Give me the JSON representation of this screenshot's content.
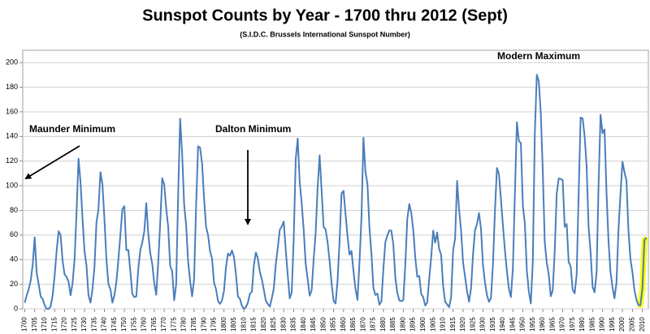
{
  "chart_data": {
    "type": "line",
    "title": "Sunspot Counts by Year - 1700 thru 2012 (Sept)",
    "subtitle": "(S.I.D.C. Brussels International Sunspot Number)",
    "annotations": [
      "Maunder Minimum",
      "Dalton Minimum",
      "Modern Maximum"
    ],
    "xlim": [
      1699,
      2013
    ],
    "ylim": [
      0,
      210
    ],
    "yticks": [
      0,
      20,
      40,
      60,
      80,
      100,
      120,
      140,
      160,
      180,
      200
    ],
    "xticks": [
      1700,
      1705,
      1710,
      1715,
      1720,
      1725,
      1730,
      1735,
      1740,
      1745,
      1750,
      1755,
      1760,
      1765,
      1770,
      1775,
      1780,
      1785,
      1790,
      1795,
      1800,
      1805,
      1810,
      1815,
      1820,
      1825,
      1830,
      1835,
      1840,
      1845,
      1850,
      1855,
      1860,
      1865,
      1870,
      1875,
      1880,
      1885,
      1890,
      1895,
      1900,
      1905,
      1910,
      1915,
      1920,
      1925,
      1930,
      1935,
      1940,
      1945,
      1950,
      1955,
      1960,
      1965,
      1970,
      1975,
      1980,
      1985,
      1990,
      1995,
      2000,
      2005,
      2010
    ],
    "grid": true,
    "color": "#4a7ebb",
    "highlight": {
      "x": [
        2008,
        2012
      ],
      "color": "#ffff00"
    },
    "x": [
      1700,
      1701,
      1702,
      1703,
      1704,
      1705,
      1706,
      1707,
      1708,
      1709,
      1710,
      1711,
      1712,
      1713,
      1714,
      1715,
      1716,
      1717,
      1718,
      1719,
      1720,
      1721,
      1722,
      1723,
      1724,
      1725,
      1726,
      1727,
      1728,
      1729,
      1730,
      1731,
      1732,
      1733,
      1734,
      1735,
      1736,
      1737,
      1738,
      1739,
      1740,
      1741,
      1742,
      1743,
      1744,
      1745,
      1746,
      1747,
      1748,
      1749,
      1750,
      1751,
      1752,
      1753,
      1754,
      1755,
      1756,
      1757,
      1758,
      1759,
      1760,
      1761,
      1762,
      1763,
      1764,
      1765,
      1766,
      1767,
      1768,
      1769,
      1770,
      1771,
      1772,
      1773,
      1774,
      1775,
      1776,
      1777,
      1778,
      1779,
      1780,
      1781,
      1782,
      1783,
      1784,
      1785,
      1786,
      1787,
      1788,
      1789,
      1790,
      1791,
      1792,
      1793,
      1794,
      1795,
      1796,
      1797,
      1798,
      1799,
      1800,
      1801,
      1802,
      1803,
      1804,
      1805,
      1806,
      1807,
      1808,
      1809,
      1810,
      1811,
      1812,
      1813,
      1814,
      1815,
      1816,
      1817,
      1818,
      1819,
      1820,
      1821,
      1822,
      1823,
      1824,
      1825,
      1826,
      1827,
      1828,
      1829,
      1830,
      1831,
      1832,
      1833,
      1834,
      1835,
      1836,
      1837,
      1838,
      1839,
      1840,
      1841,
      1842,
      1843,
      1844,
      1845,
      1846,
      1847,
      1848,
      1849,
      1850,
      1851,
      1852,
      1853,
      1854,
      1855,
      1856,
      1857,
      1858,
      1859,
      1860,
      1861,
      1862,
      1863,
      1864,
      1865,
      1866,
      1867,
      1868,
      1869,
      1870,
      1871,
      1872,
      1873,
      1874,
      1875,
      1876,
      1877,
      1878,
      1879,
      1880,
      1881,
      1882,
      1883,
      1884,
      1885,
      1886,
      1887,
      1888,
      1889,
      1890,
      1891,
      1892,
      1893,
      1894,
      1895,
      1896,
      1897,
      1898,
      1899,
      1900,
      1901,
      1902,
      1903,
      1904,
      1905,
      1906,
      1907,
      1908,
      1909,
      1910,
      1911,
      1912,
      1913,
      1914,
      1915,
      1916,
      1917,
      1918,
      1919,
      1920,
      1921,
      1922,
      1923,
      1924,
      1925,
      1926,
      1927,
      1928,
      1929,
      1930,
      1931,
      1932,
      1933,
      1934,
      1935,
      1936,
      1937,
      1938,
      1939,
      1940,
      1941,
      1942,
      1943,
      1944,
      1945,
      1946,
      1947,
      1948,
      1949,
      1950,
      1951,
      1952,
      1953,
      1954,
      1955,
      1956,
      1957,
      1958,
      1959,
      1960,
      1961,
      1962,
      1963,
      1964,
      1965,
      1966,
      1967,
      1968,
      1969,
      1970,
      1971,
      1972,
      1973,
      1974,
      1975,
      1976,
      1977,
      1978,
      1979,
      1980,
      1981,
      1982,
      1983,
      1984,
      1985,
      1986,
      1987,
      1988,
      1989,
      1990,
      1991,
      1992,
      1993,
      1994,
      1995,
      1996,
      1997,
      1998,
      1999,
      2000,
      2001,
      2002,
      2003,
      2004,
      2005,
      2006,
      2007,
      2008,
      2009,
      2010,
      2011,
      2012
    ],
    "values": [
      5,
      11,
      16,
      23,
      36,
      58,
      29,
      20,
      10,
      8,
      3,
      0,
      0,
      2,
      11,
      27,
      47,
      63,
      60,
      39,
      28,
      26,
      22,
      11,
      21,
      40,
      78,
      122,
      103,
      73,
      47,
      35,
      11,
      5,
      16,
      34,
      70,
      81,
      111,
      101,
      73,
      40,
      20,
      16,
      5,
      11,
      22,
      40,
      60,
      80.9,
      83.4,
      47.7,
      47.8,
      30.7,
      12.2,
      9.6,
      10.2,
      32.4,
      47.6,
      54,
      62.9,
      85.9,
      61.2,
      45.1,
      36.4,
      20.9,
      11.4,
      37.8,
      69.8,
      106.1,
      100.8,
      81.6,
      66.5,
      34.8,
      30.6,
      7,
      19.8,
      92.5,
      154.4,
      125.9,
      84.8,
      68.1,
      38.5,
      22.8,
      10.2,
      24.1,
      82.9,
      132,
      130.9,
      118.1,
      89.9,
      66.6,
      60,
      46.9,
      41,
      21.3,
      16,
      6.4,
      4.1,
      6.8,
      14.5,
      34,
      45,
      43.1,
      47.5,
      42.2,
      28.1,
      10.1,
      8.1,
      2.5,
      0,
      1.4,
      5,
      12.2,
      13.9,
      35.4,
      45.8,
      41,
      30.1,
      23.9,
      15.6,
      6.6,
      4,
      1.8,
      8.5,
      16.6,
      36.3,
      49.6,
      64.2,
      67,
      70.9,
      47.8,
      27.5,
      8.5,
      13.2,
      56.9,
      121.5,
      138.3,
      103.2,
      85.7,
      64.6,
      36.7,
      24.2,
      10.7,
      15,
      40.1,
      61.5,
      98.5,
      124.7,
      96.3,
      66.6,
      64.5,
      54.1,
      39,
      20.6,
      6.7,
      4.3,
      22.7,
      54.8,
      93.8,
      95.8,
      77.2,
      59.1,
      44,
      47,
      30.5,
      16.3,
      7.3,
      37.6,
      74,
      139,
      111.2,
      101.6,
      66.2,
      44.7,
      17,
      11.3,
      12.4,
      3.4,
      6,
      32.3,
      54.3,
      59.7,
      63.7,
      63.5,
      52.2,
      25.4,
      13.1,
      6.8,
      6.3,
      7.1,
      35.6,
      73,
      85.1,
      78,
      64,
      41.8,
      26.2,
      26.7,
      12.1,
      9.5,
      2.7,
      5,
      24.4,
      42,
      63.5,
      53.8,
      62,
      48.5,
      43.9,
      18.6,
      5.7,
      3.6,
      1.4,
      9.6,
      47.4,
      57.1,
      103.9,
      80.6,
      63.6,
      37.6,
      26.1,
      14.2,
      5.8,
      16.7,
      44.3,
      63.9,
      69,
      77.8,
      64.9,
      35.7,
      21.2,
      11.1,
      5.7,
      8.7,
      36.1,
      79.7,
      114.4,
      109.6,
      88.8,
      67.8,
      47.5,
      30.6,
      16.3,
      9.6,
      33.2,
      92.6,
      151.6,
      136.3,
      134.7,
      83.9,
      69.4,
      31.5,
      13.9,
      4.4,
      38,
      141.7,
      190.2,
      184.8,
      159,
      112.3,
      53.9,
      37.6,
      27.9,
      10.2,
      15.1,
      47,
      93.8,
      105.9,
      105.5,
      104.5,
      66.6,
      68.9,
      38,
      34.5,
      15.5,
      12.6,
      27.5,
      92.5,
      155.4,
      154.6,
      140.4,
      115.9,
      66.6,
      45.9,
      17.9,
      13.4,
      29.4,
      100.2,
      157.6,
      142.6,
      145.7,
      94.3,
      54.6,
      29.9,
      17.5,
      8.6,
      21.5,
      64.3,
      93.3,
      119.6,
      111,
      104,
      63.7,
      40.4,
      29.8,
      15.2,
      7.5,
      2.9,
      3.1,
      16.5,
      55.7,
      58
    ]
  }
}
